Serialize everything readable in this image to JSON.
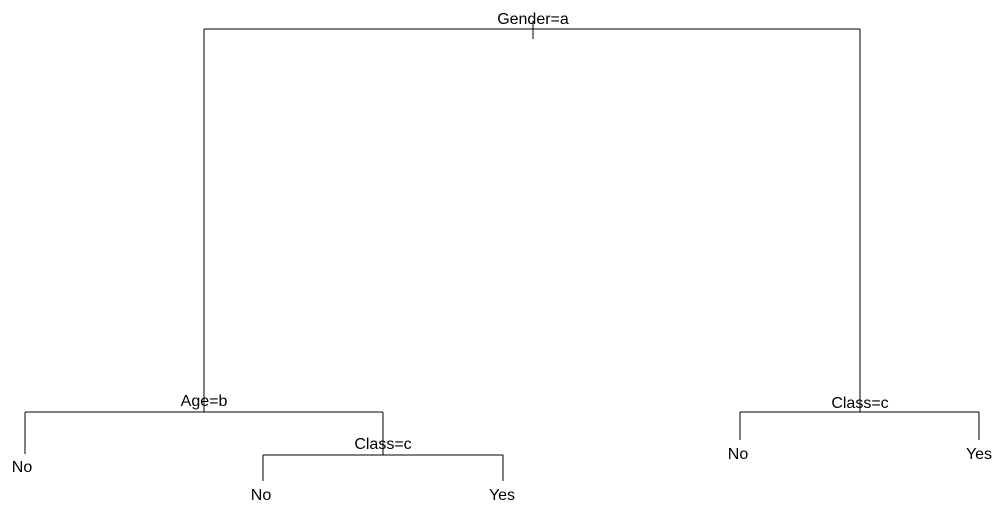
{
  "diagram": {
    "type": "decision-tree",
    "root": {
      "label": "Gender=a",
      "left": {
        "label": "Age=b",
        "left": {
          "label": "No"
        },
        "right": {
          "label": "Class=c",
          "left": {
            "label": "No"
          },
          "right": {
            "label": "Yes"
          }
        }
      },
      "right": {
        "label": "Class=c",
        "left": {
          "label": "No"
        },
        "right": {
          "label": "Yes"
        }
      }
    }
  }
}
